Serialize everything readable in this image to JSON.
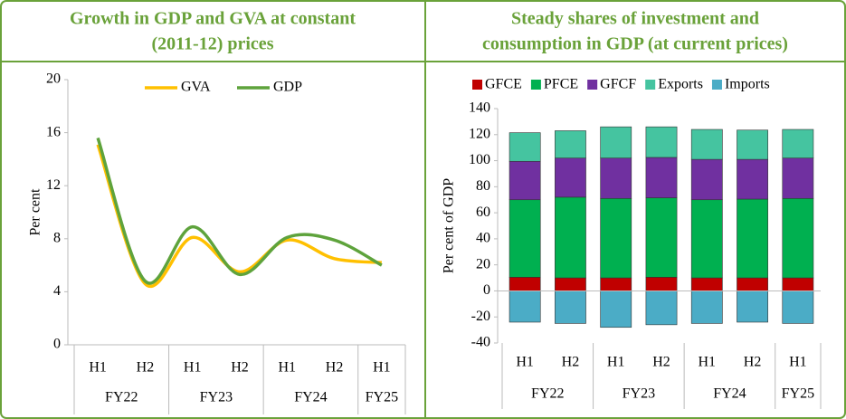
{
  "chart_data": [
    {
      "type": "line",
      "title": [
        "Growth in GDP and GVA at constant",
        "(2011-12) prices"
      ],
      "ylabel": "Per cent",
      "category_groups": [
        {
          "name": "FY22",
          "categories": [
            "H1",
            "H2"
          ]
        },
        {
          "name": "FY23",
          "categories": [
            "H1",
            "H2"
          ]
        },
        {
          "name": "FY24",
          "categories": [
            "H1",
            "H2"
          ]
        },
        {
          "name": "FY25",
          "categories": [
            "H1"
          ]
        }
      ],
      "ylim": [
        0,
        20
      ],
      "yticks": [
        0,
        4,
        8,
        12,
        16,
        20
      ],
      "series": [
        {
          "name": "GVA",
          "color": "#ffc000",
          "values": [
            15.1,
            4.6,
            8.1,
            5.5,
            7.9,
            6.5,
            6.2
          ]
        },
        {
          "name": "GDP",
          "color": "#5ea33c",
          "values": [
            15.6,
            4.8,
            8.9,
            5.3,
            8.1,
            7.9,
            6.0
          ]
        }
      ]
    },
    {
      "type": "stacked_bar",
      "title": [
        "Steady shares of investment and",
        "consumption in GDP (at current prices)"
      ],
      "ylabel": "Per cent of GDP",
      "category_groups": [
        {
          "name": "FY22",
          "categories": [
            "H1",
            "H2"
          ]
        },
        {
          "name": "FY23",
          "categories": [
            "H1",
            "H2"
          ]
        },
        {
          "name": "FY24",
          "categories": [
            "H1",
            "H2"
          ]
        },
        {
          "name": "FY25",
          "categories": [
            "H1"
          ]
        }
      ],
      "ylim": [
        -40,
        140
      ],
      "yticks": [
        -40,
        -20,
        0,
        20,
        40,
        60,
        80,
        100,
        120,
        140
      ],
      "series": [
        {
          "name": "GFCE",
          "color": "#c00000",
          "values": [
            10.5,
            10,
            10,
            10.5,
            10,
            10,
            10
          ]
        },
        {
          "name": "PFCE",
          "color": "#00b050",
          "values": [
            59.5,
            62,
            61,
            61,
            60,
            60.5,
            61
          ]
        },
        {
          "name": "GFCF",
          "color": "#7030a0",
          "values": [
            29.5,
            30,
            31,
            31,
            31,
            30.5,
            31
          ]
        },
        {
          "name": "Exports",
          "color": "#45c4a0",
          "values": [
            22,
            21,
            24,
            23.5,
            23,
            22.5,
            22
          ]
        },
        {
          "name": "Imports",
          "color": "#4bacc6",
          "values": [
            -24,
            -25,
            -28,
            -26,
            -25,
            -24,
            -25
          ]
        }
      ]
    }
  ]
}
